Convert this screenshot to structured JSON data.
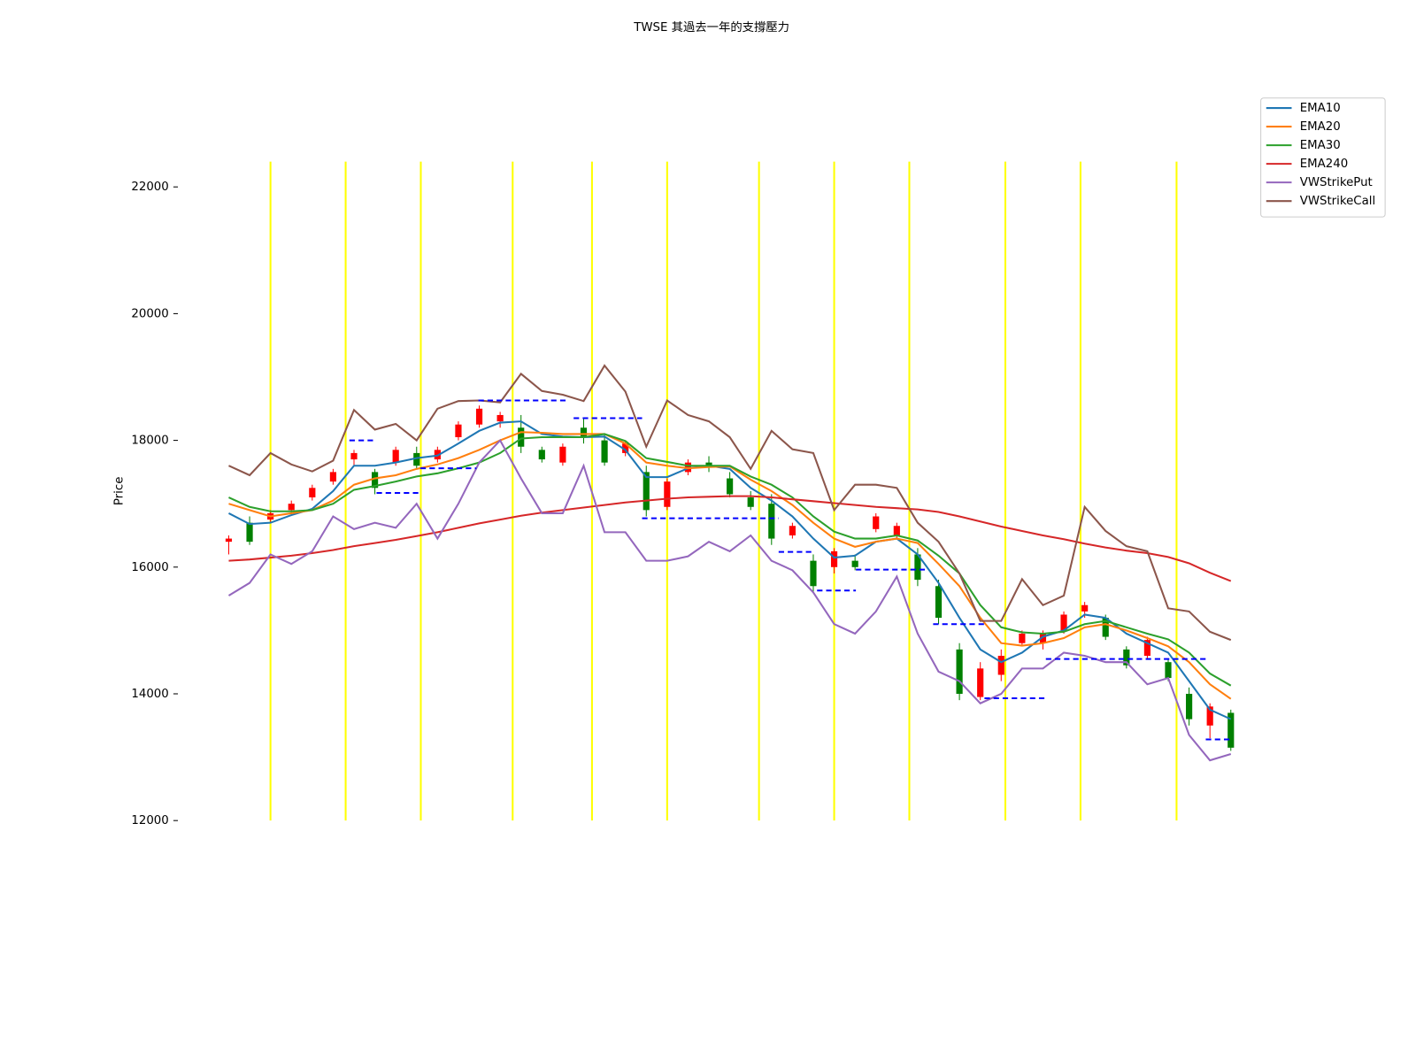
{
  "chart_data": {
    "type": "candlestick",
    "title": "TWSE 其過去一年的支撐壓力",
    "ylabel": "Price",
    "xlim": [
      0,
      240
    ],
    "ylim": [
      12000,
      22400
    ],
    "yticks": [
      12000,
      14000,
      16000,
      18000,
      20000,
      22000
    ],
    "legend": "upper right",
    "x": [
      0,
      5,
      10,
      15,
      20,
      25,
      30,
      35,
      40,
      45,
      50,
      55,
      60,
      65,
      70,
      75,
      80,
      85,
      90,
      95,
      100,
      105,
      110,
      115,
      120,
      125,
      130,
      135,
      140,
      145,
      150,
      155,
      160,
      165,
      170,
      175,
      180,
      185,
      190,
      195,
      200,
      205,
      210,
      215,
      220,
      225,
      230,
      235,
      240
    ],
    "candles": {
      "up_color": "#ff0000",
      "down_color": "#008000",
      "open": [
        16400,
        16700,
        16750,
        16900,
        17100,
        17350,
        17700,
        17500,
        17650,
        17800,
        17700,
        18050,
        18250,
        18300,
        18200,
        17850,
        17650,
        18200,
        18000,
        17800,
        17500,
        16950,
        17500,
        17650,
        17400,
        17100,
        17000,
        16500,
        16100,
        16000,
        16100,
        16600,
        16500,
        16200,
        15700,
        14700,
        13950,
        14300,
        14800,
        14800,
        15000,
        15300,
        15200,
        14700,
        14600,
        14500,
        14000,
        13500,
        13700
      ],
      "high": [
        16500,
        16800,
        16900,
        17050,
        17300,
        17550,
        17850,
        17550,
        17900,
        17900,
        17900,
        18300,
        18550,
        18450,
        18400,
        17900,
        17950,
        18350,
        18100,
        18000,
        17600,
        17400,
        17700,
        17750,
        17500,
        17200,
        17150,
        16700,
        16200,
        16300,
        16200,
        16850,
        16700,
        16300,
        15800,
        14800,
        14500,
        14700,
        15000,
        15000,
        15300,
        15450,
        15250,
        14750,
        14900,
        14550,
        14100,
        13850,
        13750
      ],
      "low": [
        16200,
        16350,
        16700,
        16850,
        17050,
        17300,
        17600,
        17150,
        17600,
        17550,
        17650,
        18000,
        18200,
        18200,
        17800,
        17650,
        17600,
        17950,
        17600,
        17750,
        16800,
        16900,
        17450,
        17500,
        17100,
        16900,
        16350,
        16450,
        15600,
        15900,
        15950,
        16550,
        16450,
        15700,
        15100,
        13900,
        13900,
        14200,
        14750,
        14700,
        14950,
        15200,
        14850,
        14400,
        14550,
        14200,
        13500,
        13300,
        13100
      ],
      "close": [
        16450,
        16400,
        16850,
        17000,
        17250,
        17500,
        17800,
        17250,
        17850,
        17600,
        17850,
        18250,
        18500,
        18400,
        17900,
        17700,
        17900,
        18050,
        17650,
        17950,
        16900,
        17350,
        17650,
        17600,
        17150,
        16950,
        16450,
        16650,
        15700,
        16250,
        16000,
        16800,
        16650,
        15800,
        15200,
        14000,
        14400,
        14600,
        14950,
        14950,
        15250,
        15400,
        14900,
        14450,
        14850,
        14250,
        13600,
        13800,
        13150
      ]
    },
    "series": [
      {
        "name": "EMA10",
        "color": "#1f77b4",
        "values": [
          16850,
          16680,
          16700,
          16820,
          16920,
          17200,
          17600,
          17600,
          17650,
          17720,
          17760,
          17950,
          18150,
          18280,
          18300,
          18100,
          18060,
          18050,
          18060,
          17850,
          17420,
          17420,
          17560,
          17600,
          17550,
          17250,
          17050,
          16800,
          16450,
          16150,
          16180,
          16400,
          16450,
          16200,
          15750,
          15200,
          14700,
          14500,
          14650,
          14900,
          15000,
          15250,
          15200,
          14950,
          14800,
          14650,
          14200,
          13750,
          13600
        ]
      },
      {
        "name": "EMA20",
        "color": "#ff7f0e",
        "values": [
          17000,
          16900,
          16800,
          16850,
          16900,
          17050,
          17300,
          17400,
          17450,
          17550,
          17620,
          17720,
          17850,
          18000,
          18130,
          18120,
          18100,
          18100,
          18100,
          17950,
          17650,
          17600,
          17560,
          17580,
          17590,
          17380,
          17200,
          16980,
          16700,
          16450,
          16320,
          16400,
          16450,
          16380,
          16050,
          15700,
          15200,
          14800,
          14760,
          14800,
          14880,
          15050,
          15100,
          15000,
          14880,
          14750,
          14500,
          14150,
          13920
        ]
      },
      {
        "name": "EMA30",
        "color": "#2ca02c",
        "values": [
          17100,
          16950,
          16880,
          16880,
          16900,
          17000,
          17220,
          17280,
          17350,
          17430,
          17480,
          17560,
          17650,
          17800,
          18030,
          18050,
          18050,
          18050,
          18100,
          17990,
          17720,
          17660,
          17600,
          17600,
          17600,
          17430,
          17300,
          17100,
          16800,
          16560,
          16450,
          16450,
          16500,
          16420,
          16180,
          15900,
          15400,
          15050,
          14970,
          14950,
          14980,
          15100,
          15150,
          15050,
          14950,
          14860,
          14650,
          14320,
          14130
        ]
      },
      {
        "name": "EMA240",
        "color": "#d62728",
        "values": [
          16100,
          16120,
          16150,
          16180,
          16220,
          16270,
          16330,
          16380,
          16430,
          16490,
          16550,
          16620,
          16690,
          16750,
          16810,
          16860,
          16900,
          16940,
          16980,
          17020,
          17050,
          17080,
          17100,
          17110,
          17120,
          17120,
          17100,
          17070,
          17040,
          17010,
          16980,
          16950,
          16930,
          16910,
          16870,
          16800,
          16720,
          16640,
          16570,
          16500,
          16440,
          16370,
          16310,
          16260,
          16220,
          16160,
          16060,
          15910,
          15780
        ]
      },
      {
        "name": "VWStrikePut",
        "color": "#9467bd",
        "values": [
          15550,
          15750,
          16200,
          16050,
          16250,
          16800,
          16600,
          16700,
          16620,
          17000,
          16450,
          17000,
          17650,
          18000,
          17400,
          16850,
          16850,
          17600,
          16550,
          16550,
          16100,
          16100,
          16170,
          16400,
          16250,
          16500,
          16100,
          15950,
          15600,
          15100,
          14950,
          15300,
          15850,
          14950,
          14350,
          14200,
          13850,
          14000,
          14400,
          14400,
          14650,
          14600,
          14500,
          14500,
          14150,
          14250,
          13350,
          12950,
          13050
        ]
      },
      {
        "name": "VWStrikeCall",
        "color": "#8c564b",
        "values": [
          17600,
          17450,
          17800,
          17620,
          17510,
          17680,
          18480,
          18170,
          18260,
          18000,
          18500,
          18620,
          18630,
          18600,
          19050,
          18780,
          18720,
          18620,
          19180,
          18770,
          17900,
          18630,
          18400,
          18300,
          18050,
          17550,
          18150,
          17860,
          17800,
          16900,
          17300,
          17300,
          17250,
          16700,
          16400,
          15900,
          15150,
          15150,
          15810,
          15400,
          15550,
          16950,
          16570,
          16330,
          16250,
          15350,
          15300,
          14980,
          14850
        ]
      }
    ],
    "vlines": {
      "color": "#ffff00",
      "x": [
        10,
        28,
        46,
        68,
        87,
        105,
        127,
        145,
        163,
        186,
        204,
        227
      ]
    },
    "levels": {
      "color": "#0000ff",
      "items": [
        {
          "start": 28.9,
          "end": 35.4,
          "value": 18000
        },
        {
          "start": 35.4,
          "end": 45.7,
          "value": 17170
        },
        {
          "start": 45.9,
          "end": 59.3,
          "value": 17560
        },
        {
          "start": 59.8,
          "end": 81,
          "value": 18630
        },
        {
          "start": 82.6,
          "end": 99,
          "value": 18350
        },
        {
          "start": 99,
          "end": 131.7,
          "value": 16770
        },
        {
          "start": 131.7,
          "end": 139.8,
          "value": 16240
        },
        {
          "start": 140.9,
          "end": 150.2,
          "value": 15630
        },
        {
          "start": 150.2,
          "end": 167.4,
          "value": 15960
        },
        {
          "start": 168.7,
          "end": 181,
          "value": 15100
        },
        {
          "start": 181,
          "end": 195.7,
          "value": 13930
        },
        {
          "start": 195.7,
          "end": 234,
          "value": 14550
        },
        {
          "start": 234,
          "end": 240,
          "value": 13280
        }
      ]
    }
  }
}
